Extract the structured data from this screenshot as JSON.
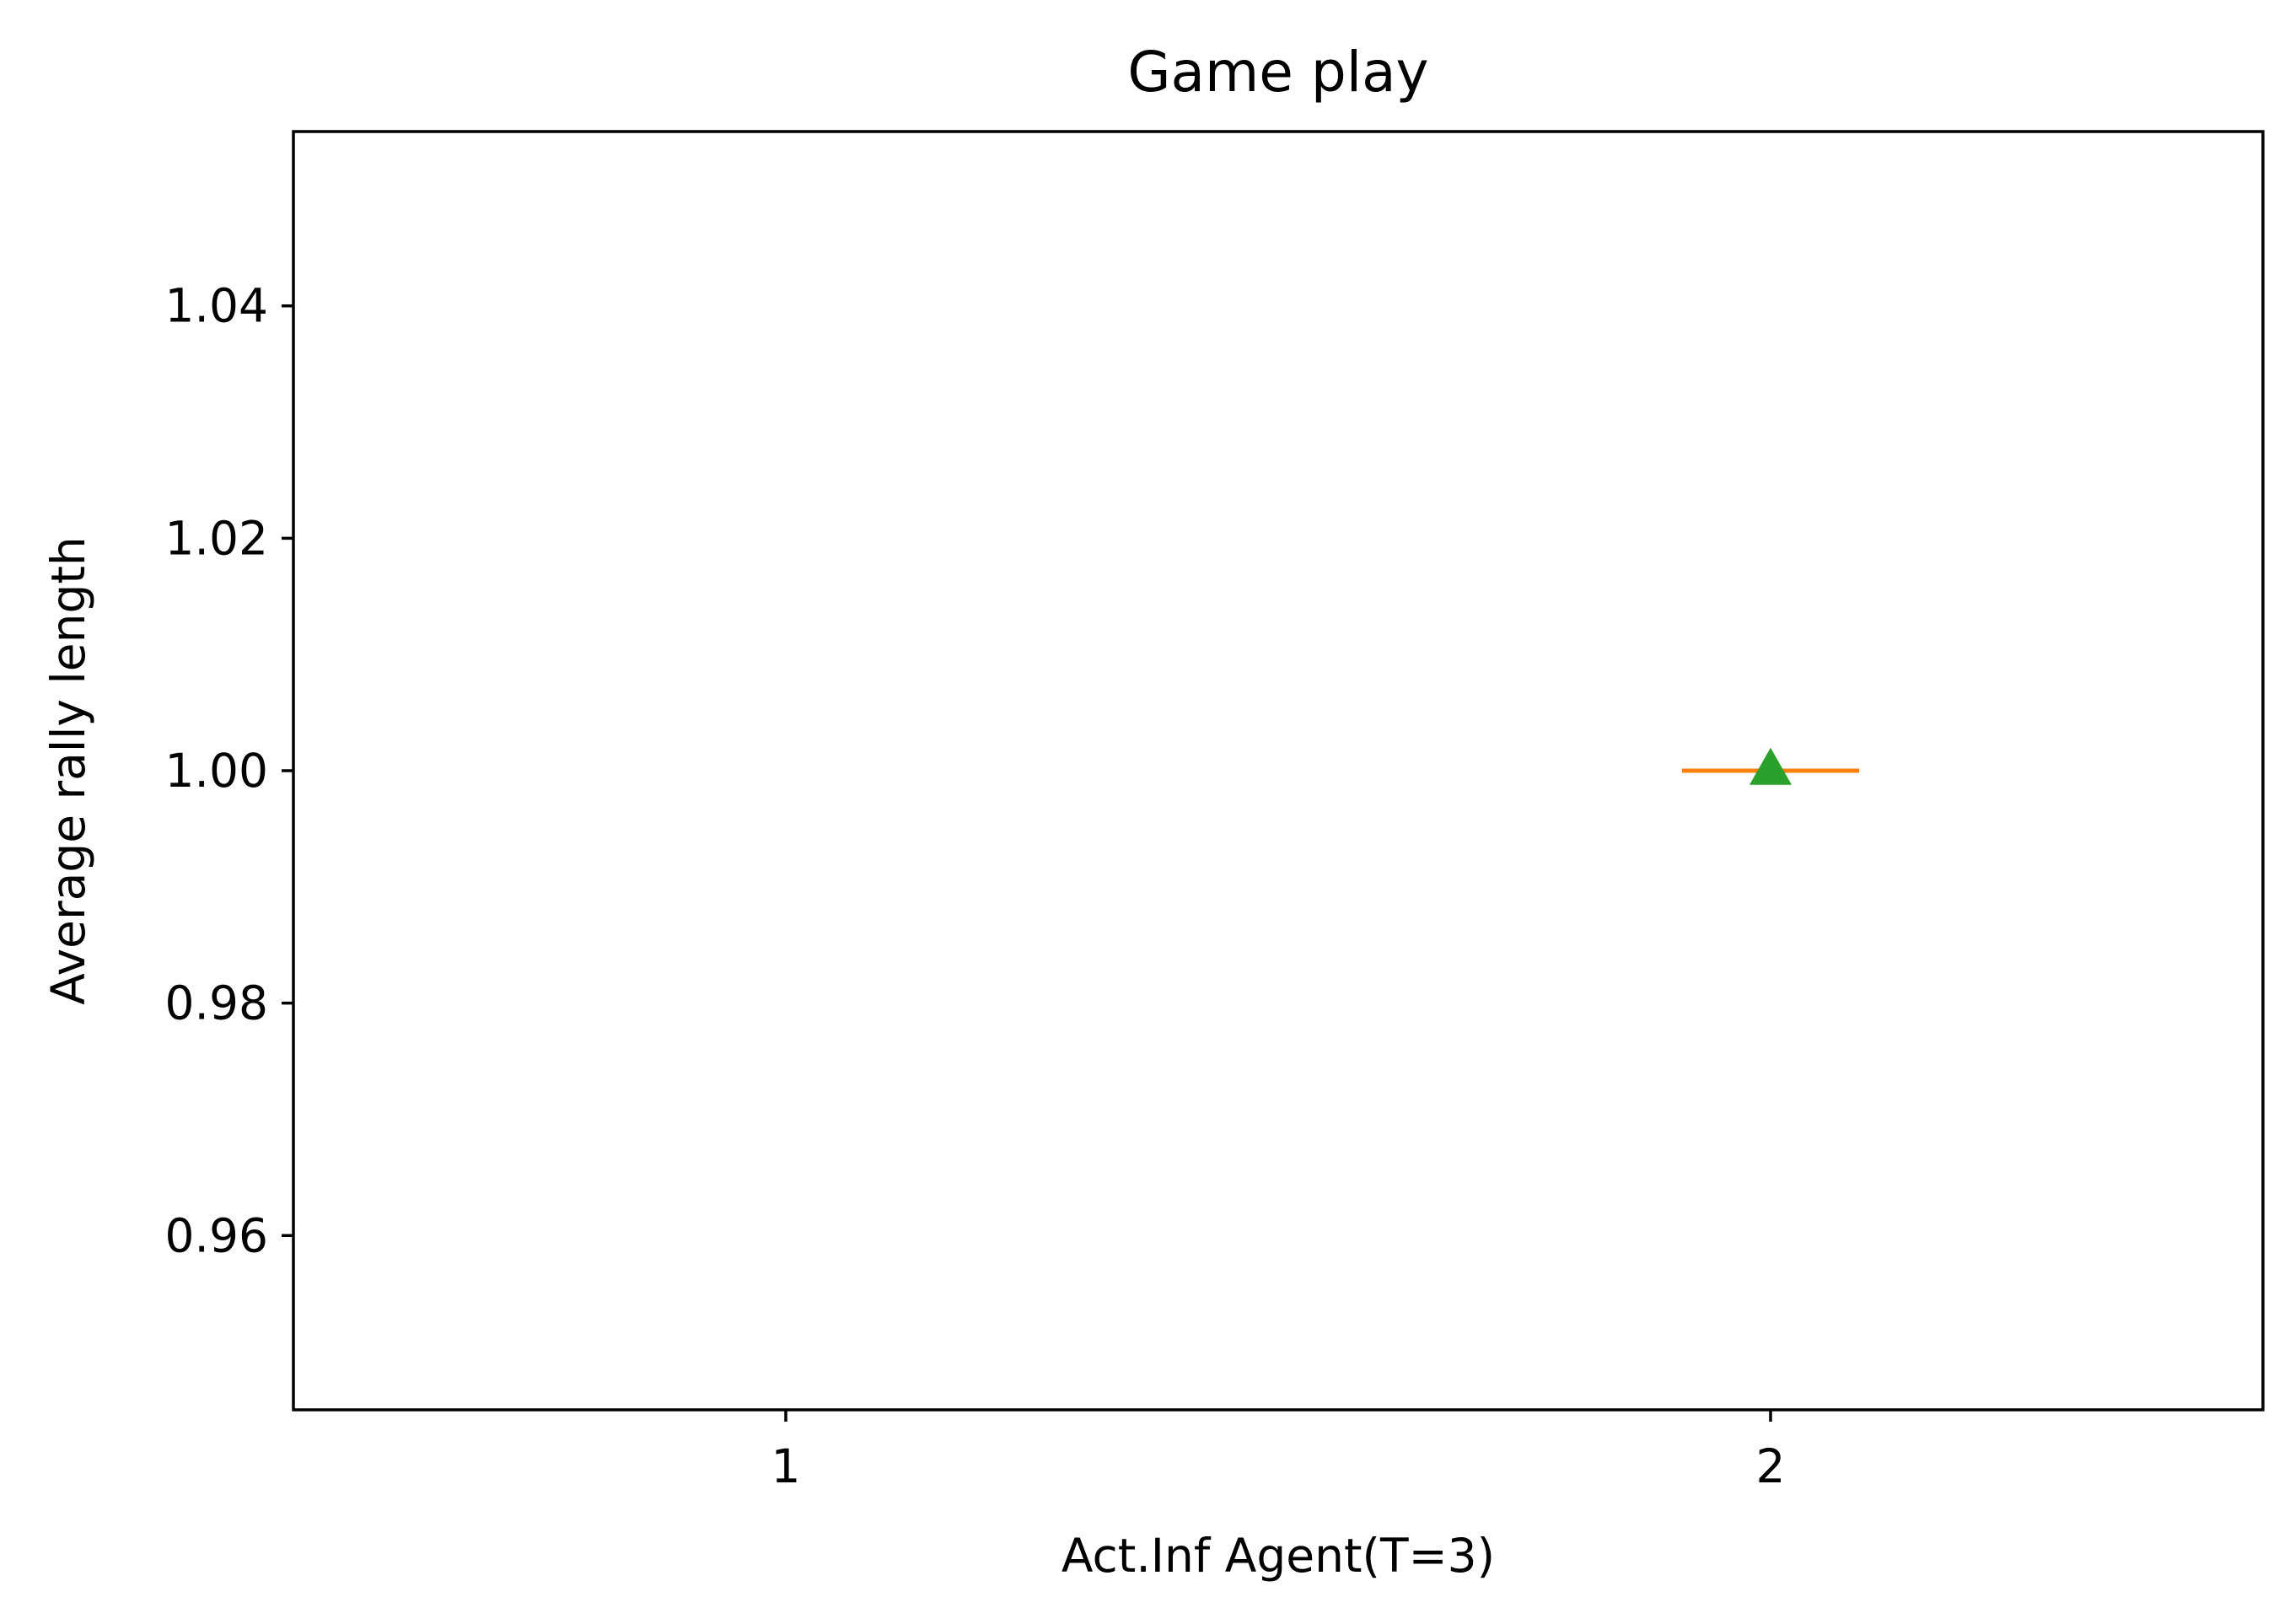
{
  "chart_data": {
    "type": "box",
    "title": "Game play",
    "xlabel": "Act.Inf Agent(T=3)",
    "ylabel": "Average rally length",
    "x_tick_labels": [
      "1",
      "2"
    ],
    "y_tick_labels": [
      "0.96",
      "0.98",
      "1.00",
      "1.02",
      "1.04"
    ],
    "y_ticks": [
      0.96,
      0.98,
      1.0,
      1.02,
      1.04
    ],
    "xlim": [
      0.5,
      2.5
    ],
    "ylim": [
      0.945,
      1.055
    ],
    "series": [
      {
        "position": 2,
        "median": 1.0,
        "mean": 1.0,
        "median_color": "#ff7f0e",
        "mean_marker": "triangle",
        "mean_color": "#2ca02c"
      }
    ],
    "grid": false
  }
}
